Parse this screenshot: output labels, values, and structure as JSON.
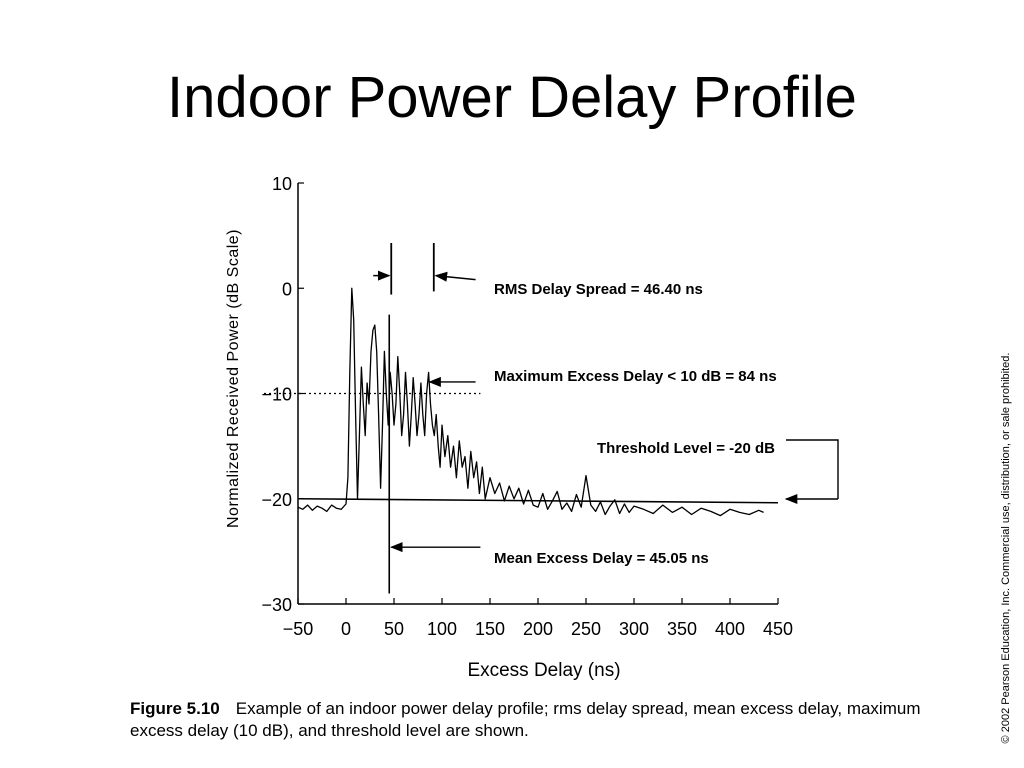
{
  "slide_title": "Indoor Power Delay Profile",
  "caption": {
    "figure_label": "Figure 5.10",
    "text": "Example of an indoor power delay profile; rms delay spread, mean excess delay, maximum excess delay (10 dB), and threshold level are shown."
  },
  "copyright": "© 2002 Pearson Education, Inc. Commercial use, distribution, or sale prohibited.",
  "chart_data": {
    "type": "line",
    "title": "",
    "xlabel": "Excess Delay (ns)",
    "ylabel": "Normalized Received Power (dB Scale)",
    "xlim": [
      -50,
      450
    ],
    "ylim": [
      -30,
      10
    ],
    "x_ticks": [
      -50,
      0,
      50,
      100,
      150,
      200,
      250,
      300,
      350,
      400,
      450
    ],
    "y_ticks": [
      {
        "value": 10,
        "label": "10"
      },
      {
        "value": 0,
        "label": "0"
      },
      {
        "value": -10,
        "label": "−10"
      },
      {
        "value": -20,
        "label": "−20"
      },
      {
        "value": -30,
        "label": "−30"
      }
    ],
    "grid": false,
    "series": [
      {
        "x": [
          -50,
          -45,
          -40,
          -35,
          -30,
          -25,
          -20,
          -15,
          -10,
          -5,
          0,
          2,
          4,
          6,
          8,
          10,
          12,
          14,
          16,
          18,
          20,
          22,
          24,
          26,
          28,
          30,
          32,
          34,
          36,
          38,
          40,
          42,
          44,
          46,
          48,
          50,
          52,
          54,
          56,
          58,
          60,
          62,
          64,
          66,
          68,
          70,
          72,
          74,
          76,
          78,
          80,
          82,
          84,
          86,
          88,
          90,
          92,
          94,
          96,
          98,
          100,
          103,
          106,
          109,
          112,
          115,
          118,
          121,
          124,
          127,
          130,
          133,
          136,
          139,
          142,
          145,
          150,
          155,
          160,
          165,
          170,
          175,
          180,
          185,
          190,
          195,
          200,
          205,
          210,
          215,
          220,
          225,
          230,
          235,
          240,
          245,
          250,
          255,
          260,
          265,
          270,
          275,
          280,
          285,
          290,
          295,
          300,
          310,
          320,
          330,
          340,
          350,
          360,
          370,
          380,
          390,
          400,
          410,
          420,
          430,
          435
        ],
        "y": [
          -20.8,
          -21,
          -20.6,
          -21.1,
          -20.7,
          -20.9,
          -21.2,
          -20.6,
          -20.9,
          -21,
          -20.5,
          -18,
          -8,
          0,
          -3,
          -12,
          -20,
          -14,
          -7.5,
          -11,
          -14,
          -9,
          -11,
          -6,
          -4,
          -3.5,
          -6,
          -12,
          -19,
          -13,
          -6,
          -10,
          -13,
          -8,
          -10,
          -13,
          -11,
          -6.5,
          -10,
          -14,
          -12,
          -8,
          -11,
          -15,
          -12,
          -8.5,
          -11,
          -14,
          -12,
          -9,
          -12,
          -14,
          -10,
          -8,
          -11,
          -13,
          -14,
          -12,
          -15,
          -17,
          -13,
          -16,
          -14,
          -17,
          -15,
          -18,
          -14.5,
          -17,
          -16,
          -19,
          -15.5,
          -18,
          -16.5,
          -19.5,
          -17,
          -20,
          -18,
          -19.5,
          -18.5,
          -20.2,
          -18.8,
          -20,
          -19,
          -20.5,
          -19.2,
          -20.6,
          -20.8,
          -19.5,
          -21,
          -20.2,
          -19.3,
          -21,
          -20.4,
          -21.2,
          -19.6,
          -20.8,
          -17.8,
          -20.6,
          -21.2,
          -20.3,
          -21.5,
          -20.7,
          -20.1,
          -21.4,
          -20.5,
          -21.3,
          -20.7,
          -21,
          -21.4,
          -20.6,
          -21.3,
          -20.8,
          -21.5,
          -20.9,
          -21.2,
          -21.6,
          -21,
          -21.3,
          -21.5,
          -21.1,
          -21.3
        ]
      }
    ],
    "threshold_level_db": -20,
    "max_excess_level_db": -10,
    "mean_excess_delay_ns": 45.05,
    "rms_markers_ns": [
      45.05,
      91.45
    ],
    "annotations": [
      {
        "id": "rms",
        "text": "RMS Delay Spread = 46.40 ns"
      },
      {
        "id": "max",
        "text": "Maximum Excess Delay < 10 dB = 84 ns"
      },
      {
        "id": "threshold",
        "text": "Threshold Level = -20 dB"
      },
      {
        "id": "mean",
        "text": "Mean Excess Delay = 45.05 ns"
      }
    ]
  }
}
